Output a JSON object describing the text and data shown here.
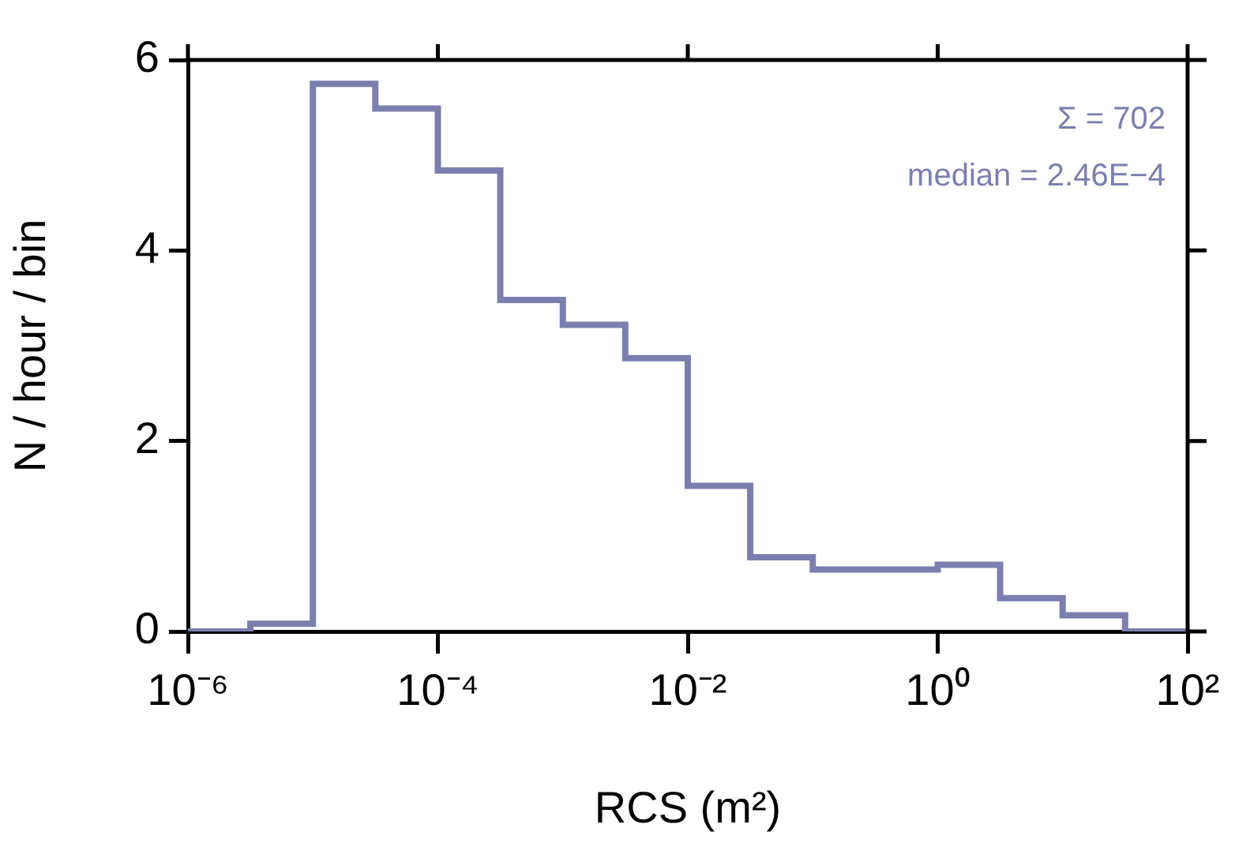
{
  "chart_data": {
    "type": "histogram",
    "xlabel": "RCS (m²)",
    "ylabel": "N / hour / bin",
    "color": "#7b7fae",
    "log": "x",
    "grid": false,
    "bins": [
      1e-06,
      3.16e-06,
      1e-05,
      3.16e-05,
      0.0001,
      0.000316,
      0.001,
      0.00316,
      0.01,
      0.0316,
      0.1,
      0.316,
      1,
      3.16,
      10,
      31.6,
      100
    ],
    "values": [
      0,
      0.08,
      5.75,
      5.49,
      4.84,
      3.48,
      3.22,
      2.87,
      1.53,
      0.78,
      0.65,
      0.65,
      0.7,
      0.35,
      0.17,
      0
    ],
    "xlim": [
      1e-06,
      100
    ],
    "xticks": [
      {
        "value": 1e-06,
        "label": "10⁻⁶"
      },
      {
        "value": 0.0001,
        "label": "10⁻⁴"
      },
      {
        "value": 0.01,
        "label": "10⁻²"
      },
      {
        "value": 1,
        "label": "10⁰"
      },
      {
        "value": 100,
        "label": "10²"
      }
    ],
    "ylim": [
      0,
      6
    ],
    "yticks": [
      0,
      2,
      4,
      6
    ],
    "annotations": [
      "Σ = 702",
      "median = 2.46E−4"
    ]
  }
}
